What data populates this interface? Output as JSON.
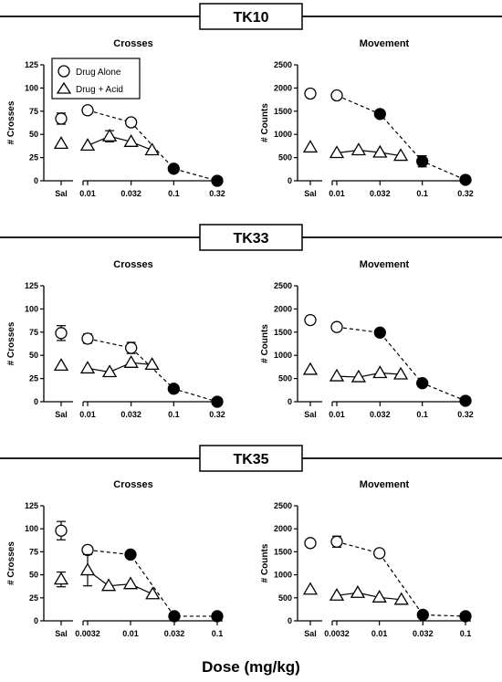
{
  "figure": {
    "x_axis_label": "Dose (mg/kg)",
    "legend": {
      "open_label": "Drug Alone",
      "triangle_label": "Drug + Acid"
    }
  },
  "chart_data": [
    {
      "group": "TK10",
      "panel": "Crosses",
      "type": "scatter",
      "title": "Crosses",
      "ylabel": "# Crosses",
      "ylim": [
        0,
        125
      ],
      "yticks": [
        "0",
        "25",
        "50",
        "75",
        "100",
        "125"
      ],
      "x_tick_labels": [
        "0.01",
        "0.032",
        "0.1",
        "0.32"
      ],
      "saline": {
        "label": "Sal",
        "drug_alone": 67,
        "drug_alone_err": 6,
        "drug_acid": 40
      },
      "series": [
        {
          "name": "Drug Alone",
          "line": "dashed",
          "marker": "circle",
          "points": [
            {
              "x": 0.01,
              "y": 76
            },
            {
              "x": 0.032,
              "y": 63
            },
            {
              "x": 0.1,
              "y": 13,
              "filled": true
            },
            {
              "x": 0.32,
              "y": 0,
              "filled": true
            }
          ]
        },
        {
          "name": "Drug + Acid",
          "line": "solid",
          "marker": "triangle",
          "points": [
            {
              "x": 0.01,
              "y": 38
            },
            {
              "x": 0.018,
              "y": 48,
              "err": 6
            },
            {
              "x": 0.032,
              "y": 42
            },
            {
              "x": 0.056,
              "y": 33
            }
          ]
        }
      ]
    },
    {
      "group": "TK10",
      "panel": "Movement",
      "type": "scatter",
      "title": "Movement",
      "ylabel": "# Counts",
      "ylim": [
        0,
        2500
      ],
      "yticks": [
        "0",
        "500",
        "1000",
        "1500",
        "2000",
        "2500"
      ],
      "x_tick_labels": [
        "0.01",
        "0.032",
        "0.1",
        "0.32"
      ],
      "saline": {
        "label": "Sal",
        "drug_alone": 1880,
        "drug_acid": 720
      },
      "series": [
        {
          "name": "Drug Alone",
          "line": "dashed",
          "marker": "circle",
          "points": [
            {
              "x": 0.01,
              "y": 1840
            },
            {
              "x": 0.032,
              "y": 1440,
              "filled": true
            },
            {
              "x": 0.1,
              "y": 420,
              "filled": true,
              "err": 120
            },
            {
              "x": 0.32,
              "y": 20,
              "filled": true
            }
          ]
        },
        {
          "name": "Drug + Acid",
          "line": "solid",
          "marker": "triangle",
          "points": [
            {
              "x": 0.01,
              "y": 600
            },
            {
              "x": 0.018,
              "y": 660
            },
            {
              "x": 0.032,
              "y": 610
            },
            {
              "x": 0.056,
              "y": 540
            }
          ]
        }
      ]
    },
    {
      "group": "TK33",
      "panel": "Crosses",
      "type": "scatter",
      "title": "Crosses",
      "ylabel": "# Crosses",
      "ylim": [
        0,
        125
      ],
      "yticks": [
        "0",
        "25",
        "50",
        "75",
        "100",
        "125"
      ],
      "x_tick_labels": [
        "0.01",
        "0.032",
        "0.1",
        "0.32"
      ],
      "saline": {
        "label": "Sal",
        "drug_alone": 74,
        "drug_alone_err": 8,
        "drug_acid": 39
      },
      "series": [
        {
          "name": "Drug Alone",
          "line": "dashed",
          "marker": "circle",
          "points": [
            {
              "x": 0.01,
              "y": 68,
              "err": 5
            },
            {
              "x": 0.032,
              "y": 58,
              "err": 6
            },
            {
              "x": 0.1,
              "y": 14,
              "filled": true
            },
            {
              "x": 0.32,
              "y": 0,
              "filled": true
            }
          ]
        },
        {
          "name": "Drug + Acid",
          "line": "solid",
          "marker": "triangle",
          "points": [
            {
              "x": 0.01,
              "y": 36
            },
            {
              "x": 0.018,
              "y": 32
            },
            {
              "x": 0.032,
              "y": 42
            },
            {
              "x": 0.056,
              "y": 40
            }
          ]
        }
      ]
    },
    {
      "group": "TK33",
      "panel": "Movement",
      "type": "scatter",
      "title": "Movement",
      "ylabel": "# Counts",
      "ylim": [
        0,
        2500
      ],
      "yticks": [
        "0",
        "500",
        "1000",
        "1500",
        "2000",
        "2500"
      ],
      "x_tick_labels": [
        "0.01",
        "0.032",
        "0.1",
        "0.32"
      ],
      "saline": {
        "label": "Sal",
        "drug_alone": 1760,
        "drug_acid": 690
      },
      "series": [
        {
          "name": "Drug Alone",
          "line": "dashed",
          "marker": "circle",
          "points": [
            {
              "x": 0.01,
              "y": 1610
            },
            {
              "x": 0.032,
              "y": 1490,
              "filled": true
            },
            {
              "x": 0.1,
              "y": 400,
              "filled": true
            },
            {
              "x": 0.32,
              "y": 20,
              "filled": true
            }
          ]
        },
        {
          "name": "Drug + Acid",
          "line": "solid",
          "marker": "triangle",
          "points": [
            {
              "x": 0.01,
              "y": 550
            },
            {
              "x": 0.018,
              "y": 530
            },
            {
              "x": 0.032,
              "y": 620
            },
            {
              "x": 0.056,
              "y": 590
            }
          ]
        }
      ]
    },
    {
      "group": "TK35",
      "panel": "Crosses",
      "type": "scatter",
      "title": "Crosses",
      "ylabel": "# Crosses",
      "ylim": [
        0,
        125
      ],
      "yticks": [
        "0",
        "25",
        "50",
        "75",
        "100",
        "125"
      ],
      "x_tick_labels": [
        "0.0032",
        "0.01",
        "0.032",
        "0.1"
      ],
      "saline": {
        "label": "Sal",
        "drug_alone": 98,
        "drug_alone_err": 10,
        "drug_acid": 45,
        "drug_acid_err": 8
      },
      "series": [
        {
          "name": "Drug Alone",
          "line": "dashed",
          "marker": "circle",
          "points": [
            {
              "x": 0.0032,
              "y": 77
            },
            {
              "x": 0.01,
              "y": 72,
              "filled": true
            },
            {
              "x": 0.032,
              "y": 5,
              "filled": true
            },
            {
              "x": 0.1,
              "y": 5,
              "filled": true
            }
          ]
        },
        {
          "name": "Drug + Acid",
          "line": "solid",
          "marker": "triangle",
          "points": [
            {
              "x": 0.0032,
              "y": 55,
              "err": 17
            },
            {
              "x": 0.0056,
              "y": 38
            },
            {
              "x": 0.01,
              "y": 40
            },
            {
              "x": 0.018,
              "y": 29
            }
          ]
        }
      ]
    },
    {
      "group": "TK35",
      "panel": "Movement",
      "type": "scatter",
      "title": "Movement",
      "ylabel": "# Counts",
      "ylim": [
        0,
        2500
      ],
      "yticks": [
        "0",
        "500",
        "1000",
        "1500",
        "2000",
        "2500"
      ],
      "x_tick_labels": [
        "0.0032",
        "0.01",
        "0.032",
        "0.1"
      ],
      "saline": {
        "label": "Sal",
        "drug_alone": 1690,
        "drug_acid": 680
      },
      "series": [
        {
          "name": "Drug Alone",
          "line": "dashed",
          "marker": "circle",
          "points": [
            {
              "x": 0.0032,
              "y": 1720,
              "err": 120
            },
            {
              "x": 0.01,
              "y": 1470
            },
            {
              "x": 0.032,
              "y": 130,
              "filled": true
            },
            {
              "x": 0.1,
              "y": 100,
              "filled": true
            }
          ]
        },
        {
          "name": "Drug + Acid",
          "line": "solid",
          "marker": "triangle",
          "points": [
            {
              "x": 0.0032,
              "y": 550
            },
            {
              "x": 0.0056,
              "y": 610
            },
            {
              "x": 0.01,
              "y": 510
            },
            {
              "x": 0.018,
              "y": 460
            }
          ]
        }
      ]
    }
  ]
}
